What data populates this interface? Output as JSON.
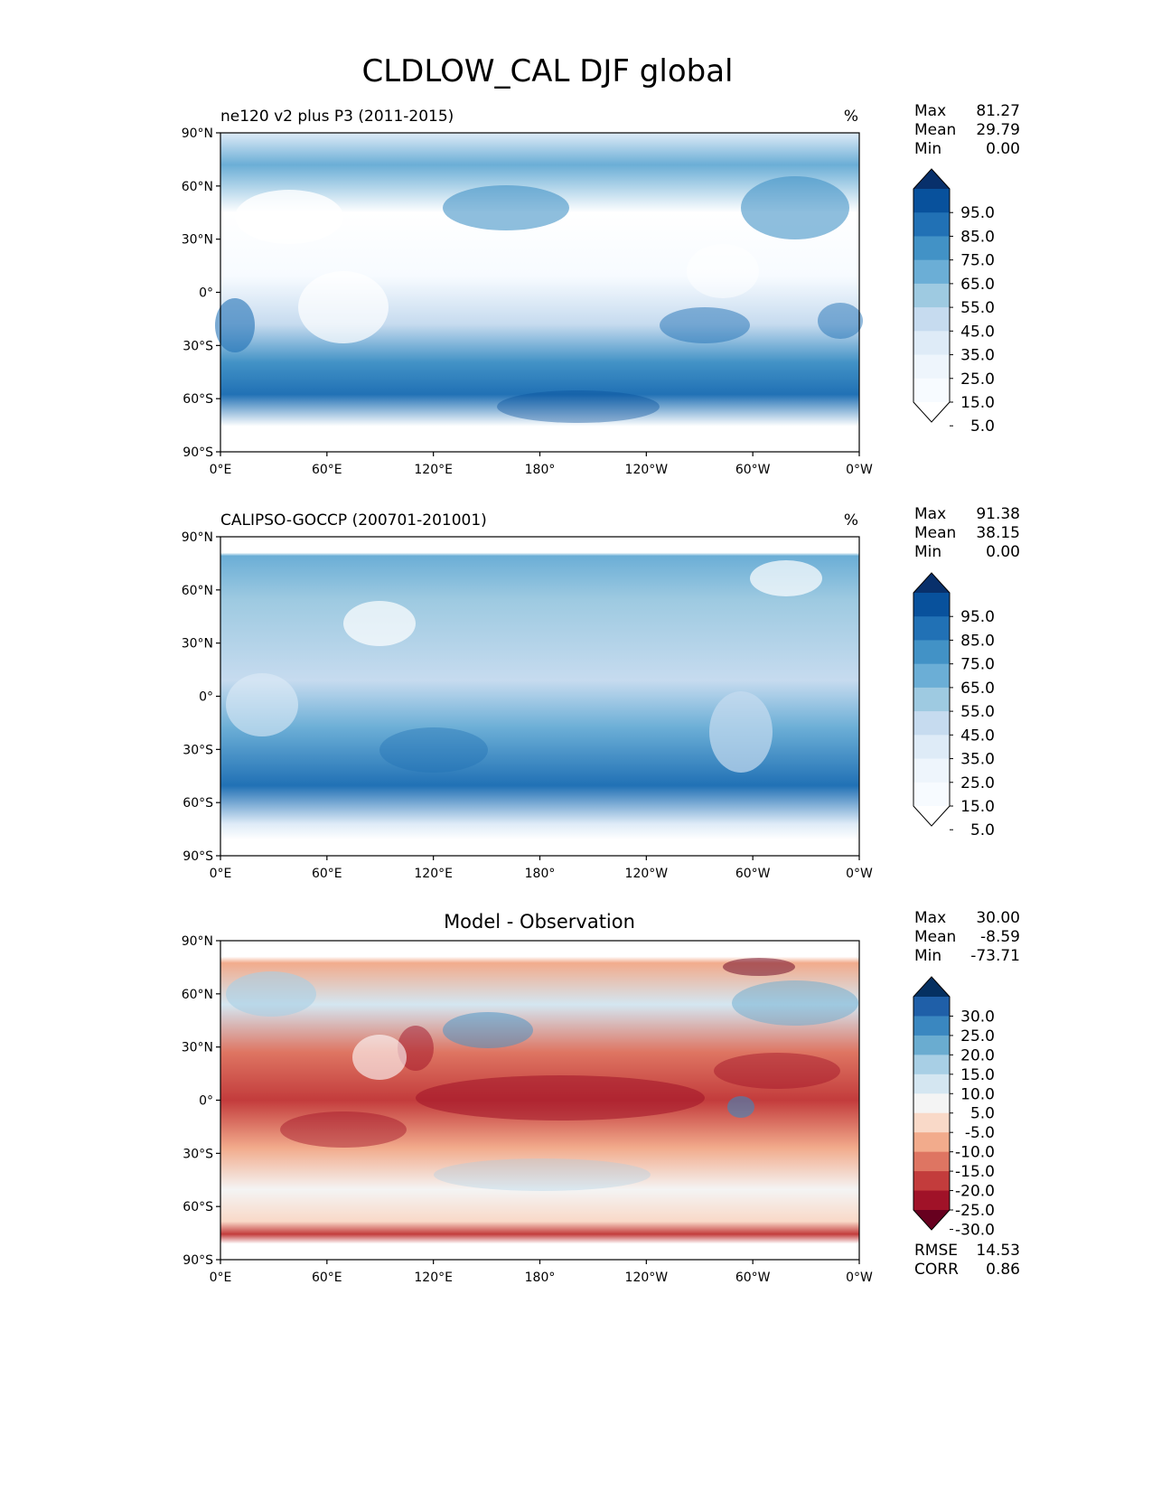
{
  "title": "CLDLOW_CAL DJF global",
  "chart_data": [
    {
      "type": "heatmap",
      "title": "ne120 v2 plus P3 (2011-2015)",
      "units": "%",
      "stats": [
        {
          "label": "Max",
          "value": "81.27"
        },
        {
          "label": "Mean",
          "value": "29.79"
        },
        {
          "label": "Min",
          "value": "0.00"
        }
      ],
      "colorbar": {
        "ticks": [
          "95.0",
          "85.0",
          "75.0",
          "65.0",
          "55.0",
          "45.0",
          "35.0",
          "25.0",
          "15.0",
          "5.0"
        ],
        "colors": [
          "#08306b",
          "#08519c",
          "#2171b5",
          "#4292c6",
          "#6baed6",
          "#9ecae1",
          "#c6dbef",
          "#deebf7",
          "#eef5fc",
          "#f7fbff",
          "#ffffff"
        ]
      },
      "yticks": [
        "90°N",
        "60°N",
        "30°N",
        "0°",
        "30°S",
        "60°S",
        "90°S"
      ],
      "xticks": [
        "0°E",
        "60°E",
        "120°E",
        "180°",
        "120°W",
        "60°W",
        "0°W"
      ]
    },
    {
      "type": "heatmap",
      "title": "CALIPSO-GOCCP (200701-201001)",
      "units": "%",
      "stats": [
        {
          "label": "Max",
          "value": "91.38"
        },
        {
          "label": "Mean",
          "value": "38.15"
        },
        {
          "label": "Min",
          "value": "0.00"
        }
      ],
      "colorbar": {
        "ticks": [
          "95.0",
          "85.0",
          "75.0",
          "65.0",
          "55.0",
          "45.0",
          "35.0",
          "25.0",
          "15.0",
          "5.0"
        ],
        "colors": [
          "#08306b",
          "#08519c",
          "#2171b5",
          "#4292c6",
          "#6baed6",
          "#9ecae1",
          "#c6dbef",
          "#deebf7",
          "#eef5fc",
          "#f7fbff",
          "#ffffff"
        ]
      },
      "yticks": [
        "90°N",
        "60°N",
        "30°N",
        "0°",
        "30°S",
        "60°S",
        "90°S"
      ],
      "xticks": [
        "0°E",
        "60°E",
        "120°E",
        "180°",
        "120°W",
        "60°W",
        "0°W"
      ]
    },
    {
      "type": "heatmap",
      "title": "Model - Observation",
      "units": "",
      "stats": [
        {
          "label": "Max",
          "value": "30.00"
        },
        {
          "label": "Mean",
          "value": "-8.59"
        },
        {
          "label": "Min",
          "value": "-73.71"
        }
      ],
      "colorbar": {
        "ticks": [
          "30.0",
          "25.0",
          "20.0",
          "15.0",
          "10.0",
          "5.0",
          "-5.0",
          "-10.0",
          "-15.0",
          "-20.0",
          "-25.0",
          "-30.0"
        ],
        "colors": [
          "#053061",
          "#1f5fa8",
          "#3a87c0",
          "#6aacd0",
          "#a8cfe5",
          "#d4e6f1",
          "#f4f4f4",
          "#f9d9c8",
          "#f2ab8c",
          "#de7562",
          "#c33c3c",
          "#a01228",
          "#67001f"
        ]
      },
      "yticks": [
        "90°N",
        "60°N",
        "30°N",
        "0°",
        "30°S",
        "60°S",
        "90°S"
      ],
      "xticks": [
        "0°E",
        "60°E",
        "120°E",
        "180°",
        "120°W",
        "60°W",
        "0°W"
      ],
      "footer_stats": [
        {
          "label": "RMSE",
          "value": "14.53"
        },
        {
          "label": "CORR",
          "value": "0.86"
        }
      ]
    }
  ]
}
